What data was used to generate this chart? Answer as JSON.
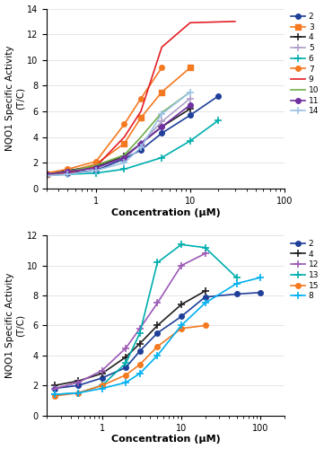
{
  "top_panel": {
    "series": {
      "2": {
        "color": "#1f3f99",
        "marker": "o",
        "markersize": 4,
        "x": [
          0.3,
          0.5,
          1,
          2,
          3,
          5,
          10,
          20
        ],
        "y": [
          1.1,
          1.2,
          1.4,
          2.3,
          3.0,
          4.3,
          5.7,
          7.2
        ]
      },
      "3": {
        "color": "#f47920",
        "marker": "s",
        "markersize": 4,
        "x": [
          0.3,
          0.5,
          1,
          2,
          3,
          5,
          10
        ],
        "y": [
          1.1,
          1.3,
          1.9,
          3.5,
          5.5,
          7.5,
          9.4
        ]
      },
      "4": {
        "color": "#231f20",
        "marker": "x",
        "markersize": 4,
        "x": [
          0.3,
          0.5,
          1,
          2,
          3,
          5,
          10
        ],
        "y": [
          1.1,
          1.4,
          1.7,
          2.5,
          3.5,
          4.8,
          6.2
        ]
      },
      "5": {
        "color": "#b0a0c8",
        "marker": "x",
        "markersize": 4,
        "x": [
          0.3,
          0.5,
          1,
          2,
          3,
          5,
          10
        ],
        "y": [
          1.1,
          1.3,
          1.6,
          2.4,
          3.5,
          5.2,
          7.0
        ]
      },
      "6": {
        "color": "#00aeae",
        "marker": "x",
        "markersize": 4,
        "x": [
          0.3,
          0.5,
          1,
          2,
          5,
          10,
          20
        ],
        "y": [
          1.0,
          1.1,
          1.2,
          1.5,
          2.4,
          3.7,
          5.3
        ]
      },
      "7": {
        "color": "#f47920",
        "marker": "o",
        "markersize": 4,
        "x": [
          0.3,
          0.5,
          1,
          2,
          3,
          5
        ],
        "y": [
          1.2,
          1.5,
          2.1,
          5.0,
          7.0,
          9.4
        ]
      },
      "9": {
        "color": "#e31f26",
        "marker": "none",
        "markersize": 0,
        "x": [
          0.3,
          0.5,
          1,
          2,
          3,
          5,
          10,
          30
        ],
        "y": [
          1.0,
          1.2,
          1.7,
          4.0,
          6.0,
          11.0,
          12.9,
          13.0
        ]
      },
      "10": {
        "color": "#70ad47",
        "marker": "none",
        "markersize": 0,
        "x": [
          0.3,
          0.5,
          1,
          2,
          3,
          5,
          10
        ],
        "y": [
          1.1,
          1.3,
          1.8,
          2.6,
          4.0,
          5.9,
          7.5
        ]
      },
      "11": {
        "color": "#7030a0",
        "marker": "o",
        "markersize": 4,
        "x": [
          0.3,
          0.5,
          1,
          2,
          3,
          5,
          10
        ],
        "y": [
          1.1,
          1.3,
          1.6,
          2.4,
          3.5,
          4.8,
          6.5
        ]
      },
      "14": {
        "color": "#9dc3e6",
        "marker": "x",
        "markersize": 4,
        "x": [
          0.3,
          0.5,
          1,
          2,
          3,
          5,
          10
        ],
        "y": [
          1.0,
          1.1,
          1.4,
          2.0,
          3.2,
          5.8,
          7.5
        ]
      }
    },
    "ylim": [
      0,
      14
    ],
    "yticks": [
      0,
      2,
      4,
      6,
      8,
      10,
      12,
      14
    ],
    "xmin": 0.3,
    "xmax": 100,
    "xticks": [
      1,
      10,
      100
    ],
    "ylabel": "NQO1 Specific Activity\n(T/C)",
    "xlabel": "Concentration (μM)"
  },
  "bottom_panel": {
    "series": {
      "2": {
        "color": "#1f3f99",
        "marker": "o",
        "markersize": 4,
        "x": [
          0.25,
          0.5,
          1,
          2,
          3,
          5,
          10,
          20,
          50,
          100
        ],
        "y": [
          1.8,
          2.0,
          2.5,
          3.2,
          4.3,
          5.5,
          6.6,
          7.9,
          8.1,
          8.2
        ]
      },
      "4": {
        "color": "#231f20",
        "marker": "x",
        "markersize": 4,
        "x": [
          0.25,
          0.5,
          1,
          2,
          3,
          5,
          10,
          20
        ],
        "y": [
          2.0,
          2.3,
          2.8,
          3.9,
          4.8,
          6.0,
          7.4,
          8.3
        ]
      },
      "12": {
        "color": "#9b59b6",
        "marker": "x",
        "markersize": 4,
        "x": [
          0.25,
          0.5,
          1,
          2,
          3,
          5,
          10,
          20
        ],
        "y": [
          1.8,
          2.2,
          3.0,
          4.5,
          5.8,
          7.5,
          10.0,
          10.8
        ]
      },
      "13": {
        "color": "#00aeae",
        "marker": "x",
        "markersize": 4,
        "x": [
          0.25,
          0.5,
          1,
          2,
          3,
          5,
          10,
          20,
          50
        ],
        "y": [
          1.4,
          1.5,
          2.0,
          3.5,
          5.5,
          10.2,
          11.4,
          11.2,
          9.2
        ]
      },
      "15": {
        "color": "#f47920",
        "marker": "o",
        "markersize": 4,
        "x": [
          0.25,
          0.5,
          1,
          2,
          3,
          5,
          10,
          20
        ],
        "y": [
          1.3,
          1.5,
          2.0,
          2.7,
          3.4,
          4.6,
          5.8,
          6.0
        ]
      },
      "8": {
        "color": "#00b0f0",
        "marker": "x",
        "markersize": 4,
        "x": [
          0.25,
          0.5,
          1,
          2,
          3,
          5,
          10,
          20,
          50,
          100
        ],
        "y": [
          1.4,
          1.5,
          1.8,
          2.2,
          2.8,
          4.0,
          6.0,
          7.5,
          8.8,
          9.2
        ]
      }
    },
    "ylim": [
      0,
      12
    ],
    "yticks": [
      0,
      2,
      4,
      6,
      8,
      10,
      12
    ],
    "xmin": 0.2,
    "xmax": 200,
    "xticks": [
      1,
      10,
      100
    ],
    "ylabel": "NQO1 Specific Activity\n(T/C)",
    "xlabel": "Concentration (μM)"
  },
  "legend_top": [
    "2",
    "3",
    "4",
    "5",
    "6",
    "7",
    "9",
    "10",
    "11",
    "14"
  ],
  "legend_bottom": [
    "2",
    "4",
    "12",
    "13",
    "15",
    "8"
  ]
}
